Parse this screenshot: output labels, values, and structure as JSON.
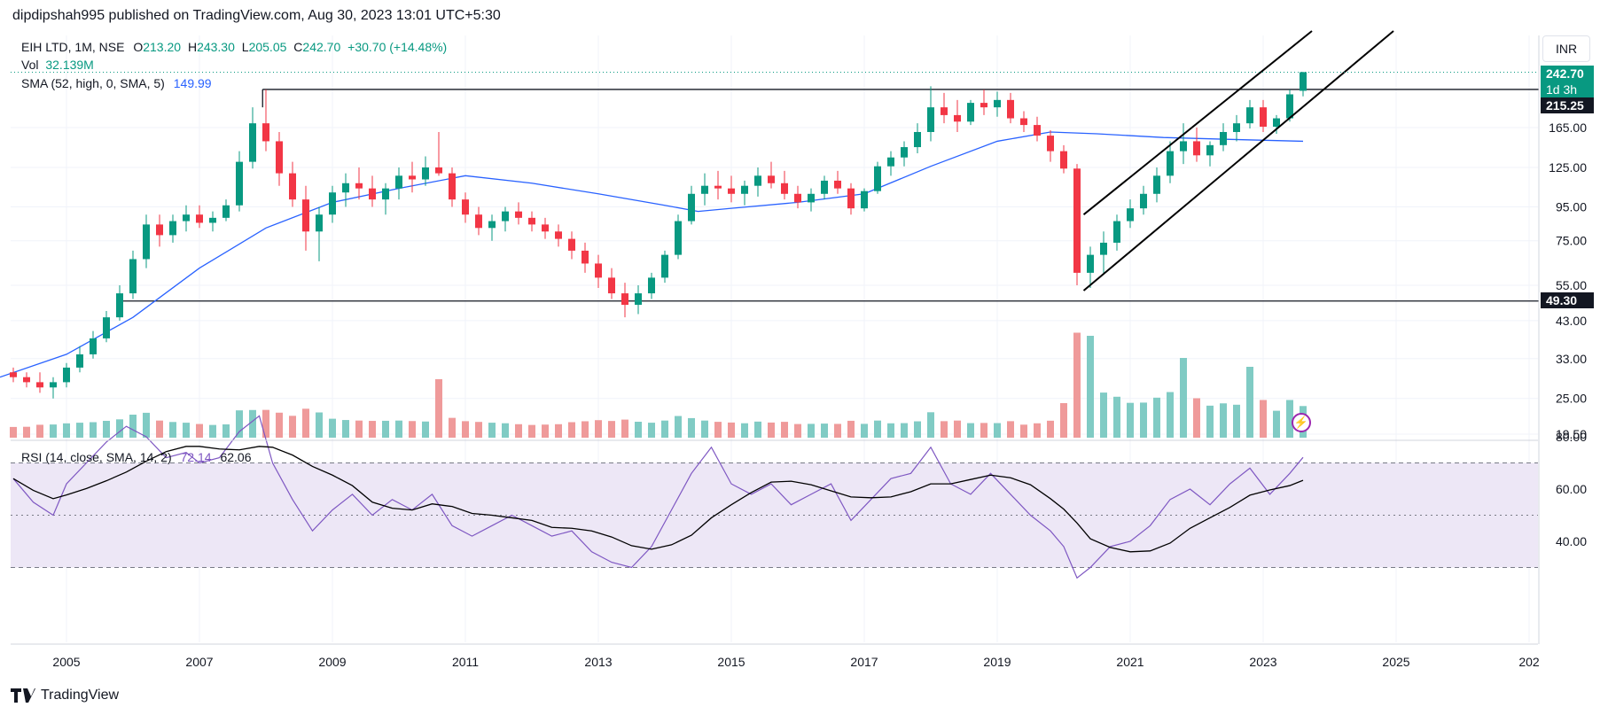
{
  "header": {
    "published_text": "dipdipshah995 published on TradingView.com, Aug 30, 2023 13:01 UTC+5:30"
  },
  "legend": {
    "symbol": "EIH LTD, 1M, NSE",
    "open_label": "O",
    "open": "213.20",
    "high_label": "H",
    "high": "243.30",
    "low_label": "L",
    "low": "205.05",
    "close_label": "C",
    "close": "242.70",
    "change": "+30.70 (+14.48%)",
    "vol_label": "Vol",
    "vol_value": "32.139M",
    "sma_label": "SMA (52, high, 0, SMA, 5)",
    "sma_value": "149.99",
    "rsi_label": "RSI (14, close, SMA, 14, 2)",
    "rsi_value": "72.14",
    "rsi_ma_value": "62.06"
  },
  "currency_button": "INR",
  "price_tags": {
    "last_price": "242.70",
    "countdown": "1d 3h",
    "resistance": "215.25",
    "support": "49.30"
  },
  "footer": {
    "brand": "TradingView"
  },
  "colors": {
    "up": "#089981",
    "down": "#f23645",
    "vol_up": "#80cbc4",
    "vol_down": "#ef9a9a",
    "sma": "#2962ff",
    "rsi": "#7e57c2",
    "rsi_ma": "#000000",
    "rsi_band": "#ede7f6",
    "grid": "#f0f3fa"
  },
  "chart_data": [
    {
      "type": "candlestick",
      "series_name": "EIH LTD, 1M, NSE",
      "x_ticks": [
        "2005",
        "2007",
        "2009",
        "2011",
        "2013",
        "2015",
        "2017",
        "2019",
        "2021",
        "2023",
        "2025",
        "202"
      ],
      "y_ticks": [
        19.5,
        25,
        33,
        43,
        55,
        75,
        95,
        125,
        165
      ],
      "y_tick_labels": [
        "19.50",
        "25.00",
        "33.00",
        "43.00",
        "55.00",
        "75.00",
        "95.00",
        "125.00",
        "165.00"
      ],
      "y_scale": "log",
      "ohlc_approx": [
        [
          2004.2,
          30,
          31,
          28,
          29
        ],
        [
          2004.4,
          29,
          30,
          27,
          28
        ],
        [
          2004.6,
          28,
          30,
          26,
          27
        ],
        [
          2004.8,
          27,
          29,
          25,
          28
        ],
        [
          2005.0,
          28,
          32,
          27,
          31
        ],
        [
          2005.2,
          31,
          36,
          30,
          34
        ],
        [
          2005.4,
          34,
          40,
          33,
          38
        ],
        [
          2005.6,
          38,
          46,
          37,
          44
        ],
        [
          2005.8,
          44,
          55,
          43,
          52
        ],
        [
          2006.0,
          52,
          70,
          50,
          66
        ],
        [
          2006.2,
          66,
          90,
          62,
          84
        ],
        [
          2006.4,
          84,
          90,
          72,
          78
        ],
        [
          2006.6,
          78,
          90,
          74,
          86
        ],
        [
          2006.8,
          86,
          96,
          80,
          90
        ],
        [
          2007.0,
          90,
          96,
          82,
          85
        ],
        [
          2007.2,
          85,
          92,
          80,
          88
        ],
        [
          2007.4,
          88,
          100,
          86,
          96
        ],
        [
          2007.6,
          96,
          140,
          92,
          130
        ],
        [
          2007.8,
          130,
          190,
          124,
          170
        ],
        [
          2008.0,
          170,
          215,
          140,
          150
        ],
        [
          2008.2,
          150,
          160,
          110,
          120
        ],
        [
          2008.4,
          120,
          130,
          95,
          100
        ],
        [
          2008.6,
          100,
          110,
          70,
          80
        ],
        [
          2008.8,
          80,
          95,
          65,
          90
        ],
        [
          2009.0,
          90,
          110,
          85,
          105
        ],
        [
          2009.2,
          105,
          120,
          95,
          112
        ],
        [
          2009.4,
          112,
          125,
          100,
          108
        ],
        [
          2009.6,
          108,
          118,
          95,
          100
        ],
        [
          2009.8,
          100,
          112,
          90,
          108
        ],
        [
          2010.0,
          108,
          125,
          100,
          118
        ],
        [
          2010.2,
          118,
          130,
          105,
          115
        ],
        [
          2010.4,
          115,
          135,
          110,
          125
        ],
        [
          2010.6,
          125,
          160,
          118,
          120
        ],
        [
          2010.8,
          120,
          125,
          95,
          100
        ],
        [
          2011.0,
          100,
          105,
          85,
          90
        ],
        [
          2011.2,
          90,
          95,
          78,
          82
        ],
        [
          2011.4,
          82,
          90,
          75,
          86
        ],
        [
          2011.6,
          86,
          95,
          80,
          92
        ],
        [
          2011.8,
          92,
          98,
          84,
          88
        ],
        [
          2012.0,
          88,
          92,
          80,
          84
        ],
        [
          2012.2,
          84,
          88,
          76,
          80
        ],
        [
          2012.4,
          80,
          84,
          72,
          76
        ],
        [
          2012.6,
          76,
          80,
          66,
          70
        ],
        [
          2012.8,
          70,
          74,
          60,
          64
        ],
        [
          2013.0,
          64,
          68,
          54,
          58
        ],
        [
          2013.2,
          58,
          62,
          50,
          52
        ],
        [
          2013.4,
          52,
          56,
          44,
          48
        ],
        [
          2013.6,
          48,
          55,
          45,
          52
        ],
        [
          2013.8,
          52,
          60,
          50,
          58
        ],
        [
          2014.0,
          58,
          70,
          56,
          68
        ],
        [
          2014.2,
          68,
          90,
          66,
          86
        ],
        [
          2014.4,
          86,
          110,
          84,
          104
        ],
        [
          2014.6,
          104,
          120,
          96,
          110
        ],
        [
          2014.8,
          110,
          122,
          100,
          108
        ],
        [
          2015.0,
          108,
          118,
          98,
          104
        ],
        [
          2015.2,
          104,
          114,
          96,
          110
        ],
        [
          2015.4,
          110,
          125,
          102,
          118
        ],
        [
          2015.6,
          118,
          130,
          108,
          112
        ],
        [
          2015.8,
          112,
          122,
          100,
          104
        ],
        [
          2016.0,
          104,
          110,
          94,
          98
        ],
        [
          2016.2,
          98,
          108,
          92,
          104
        ],
        [
          2016.4,
          104,
          118,
          100,
          114
        ],
        [
          2016.6,
          114,
          122,
          104,
          108
        ],
        [
          2016.8,
          108,
          112,
          90,
          94
        ],
        [
          2017.0,
          94,
          108,
          92,
          106
        ],
        [
          2017.2,
          106,
          130,
          104,
          126
        ],
        [
          2017.4,
          126,
          140,
          118,
          134
        ],
        [
          2017.6,
          134,
          150,
          126,
          144
        ],
        [
          2017.8,
          144,
          170,
          138,
          160
        ],
        [
          2018.0,
          160,
          220,
          150,
          190
        ],
        [
          2018.2,
          190,
          210,
          170,
          180
        ],
        [
          2018.4,
          180,
          200,
          160,
          172
        ],
        [
          2018.6,
          172,
          200,
          168,
          196
        ],
        [
          2018.8,
          196,
          215,
          180,
          190
        ],
        [
          2019.0,
          190,
          212,
          178,
          200
        ],
        [
          2019.2,
          200,
          210,
          170,
          176
        ],
        [
          2019.4,
          176,
          185,
          160,
          168
        ],
        [
          2019.6,
          168,
          178,
          150,
          156
        ],
        [
          2019.8,
          156,
          162,
          130,
          140
        ],
        [
          2020.0,
          140,
          146,
          120,
          124
        ],
        [
          2020.2,
          124,
          128,
          55,
          60
        ],
        [
          2020.4,
          60,
          72,
          54,
          68
        ],
        [
          2020.6,
          68,
          80,
          60,
          74
        ],
        [
          2020.8,
          74,
          90,
          70,
          86
        ],
        [
          2021.0,
          86,
          100,
          82,
          94
        ],
        [
          2021.2,
          94,
          110,
          90,
          104
        ],
        [
          2021.4,
          104,
          125,
          98,
          118
        ],
        [
          2021.6,
          118,
          150,
          112,
          140
        ],
        [
          2021.8,
          140,
          170,
          128,
          150
        ],
        [
          2022.0,
          150,
          165,
          130,
          136
        ],
        [
          2022.2,
          136,
          150,
          126,
          146
        ],
        [
          2022.4,
          146,
          170,
          140,
          160
        ],
        [
          2022.6,
          160,
          180,
          150,
          170
        ],
        [
          2022.8,
          170,
          200,
          164,
          190
        ],
        [
          2023.0,
          190,
          200,
          160,
          166
        ],
        [
          2023.2,
          166,
          180,
          158,
          176
        ],
        [
          2023.4,
          176,
          215,
          172,
          208
        ],
        [
          2023.6,
          213.2,
          243.3,
          205.05,
          242.7
        ]
      ]
    },
    {
      "type": "bar",
      "series_name": "Vol",
      "last_value": "32.139M"
    },
    {
      "type": "line",
      "series_name": "RSI (14, close, SMA, 14, 2)",
      "y_ticks": [
        40,
        60,
        80
      ],
      "y_tick_labels": [
        "40.00",
        "60.00",
        "80.00"
      ],
      "overbought": 70,
      "oversold": 30,
      "rsi_approx": [
        [
          2004.2,
          64
        ],
        [
          2004.5,
          55
        ],
        [
          2004.8,
          50
        ],
        [
          2005.0,
          62
        ],
        [
          2005.3,
          70
        ],
        [
          2005.6,
          78
        ],
        [
          2005.9,
          84
        ],
        [
          2006.2,
          80
        ],
        [
          2006.5,
          72
        ],
        [
          2006.8,
          74
        ],
        [
          2007.0,
          70
        ],
        [
          2007.3,
          72
        ],
        [
          2007.6,
          82
        ],
        [
          2007.9,
          88
        ],
        [
          2008.1,
          70
        ],
        [
          2008.4,
          56
        ],
        [
          2008.7,
          44
        ],
        [
          2009.0,
          52
        ],
        [
          2009.3,
          58
        ],
        [
          2009.6,
          50
        ],
        [
          2009.9,
          56
        ],
        [
          2010.2,
          52
        ],
        [
          2010.5,
          58
        ],
        [
          2010.8,
          46
        ],
        [
          2011.1,
          42
        ],
        [
          2011.4,
          46
        ],
        [
          2011.7,
          50
        ],
        [
          2012.0,
          46
        ],
        [
          2012.3,
          42
        ],
        [
          2012.6,
          44
        ],
        [
          2012.9,
          36
        ],
        [
          2013.2,
          32
        ],
        [
          2013.5,
          30
        ],
        [
          2013.8,
          38
        ],
        [
          2014.1,
          52
        ],
        [
          2014.4,
          66
        ],
        [
          2014.7,
          76
        ],
        [
          2015.0,
          62
        ],
        [
          2015.3,
          58
        ],
        [
          2015.6,
          62
        ],
        [
          2015.9,
          54
        ],
        [
          2016.2,
          58
        ],
        [
          2016.5,
          62
        ],
        [
          2016.8,
          48
        ],
        [
          2017.1,
          56
        ],
        [
          2017.4,
          64
        ],
        [
          2017.7,
          66
        ],
        [
          2018.0,
          76
        ],
        [
          2018.3,
          62
        ],
        [
          2018.6,
          58
        ],
        [
          2018.9,
          66
        ],
        [
          2019.2,
          58
        ],
        [
          2019.5,
          50
        ],
        [
          2019.8,
          44
        ],
        [
          2020.0,
          38
        ],
        [
          2020.2,
          26
        ],
        [
          2020.4,
          30
        ],
        [
          2020.7,
          38
        ],
        [
          2021.0,
          40
        ],
        [
          2021.3,
          46
        ],
        [
          2021.6,
          56
        ],
        [
          2021.9,
          60
        ],
        [
          2022.2,
          54
        ],
        [
          2022.5,
          62
        ],
        [
          2022.8,
          68
        ],
        [
          2023.1,
          58
        ],
        [
          2023.4,
          66
        ],
        [
          2023.6,
          72.14
        ]
      ]
    }
  ]
}
